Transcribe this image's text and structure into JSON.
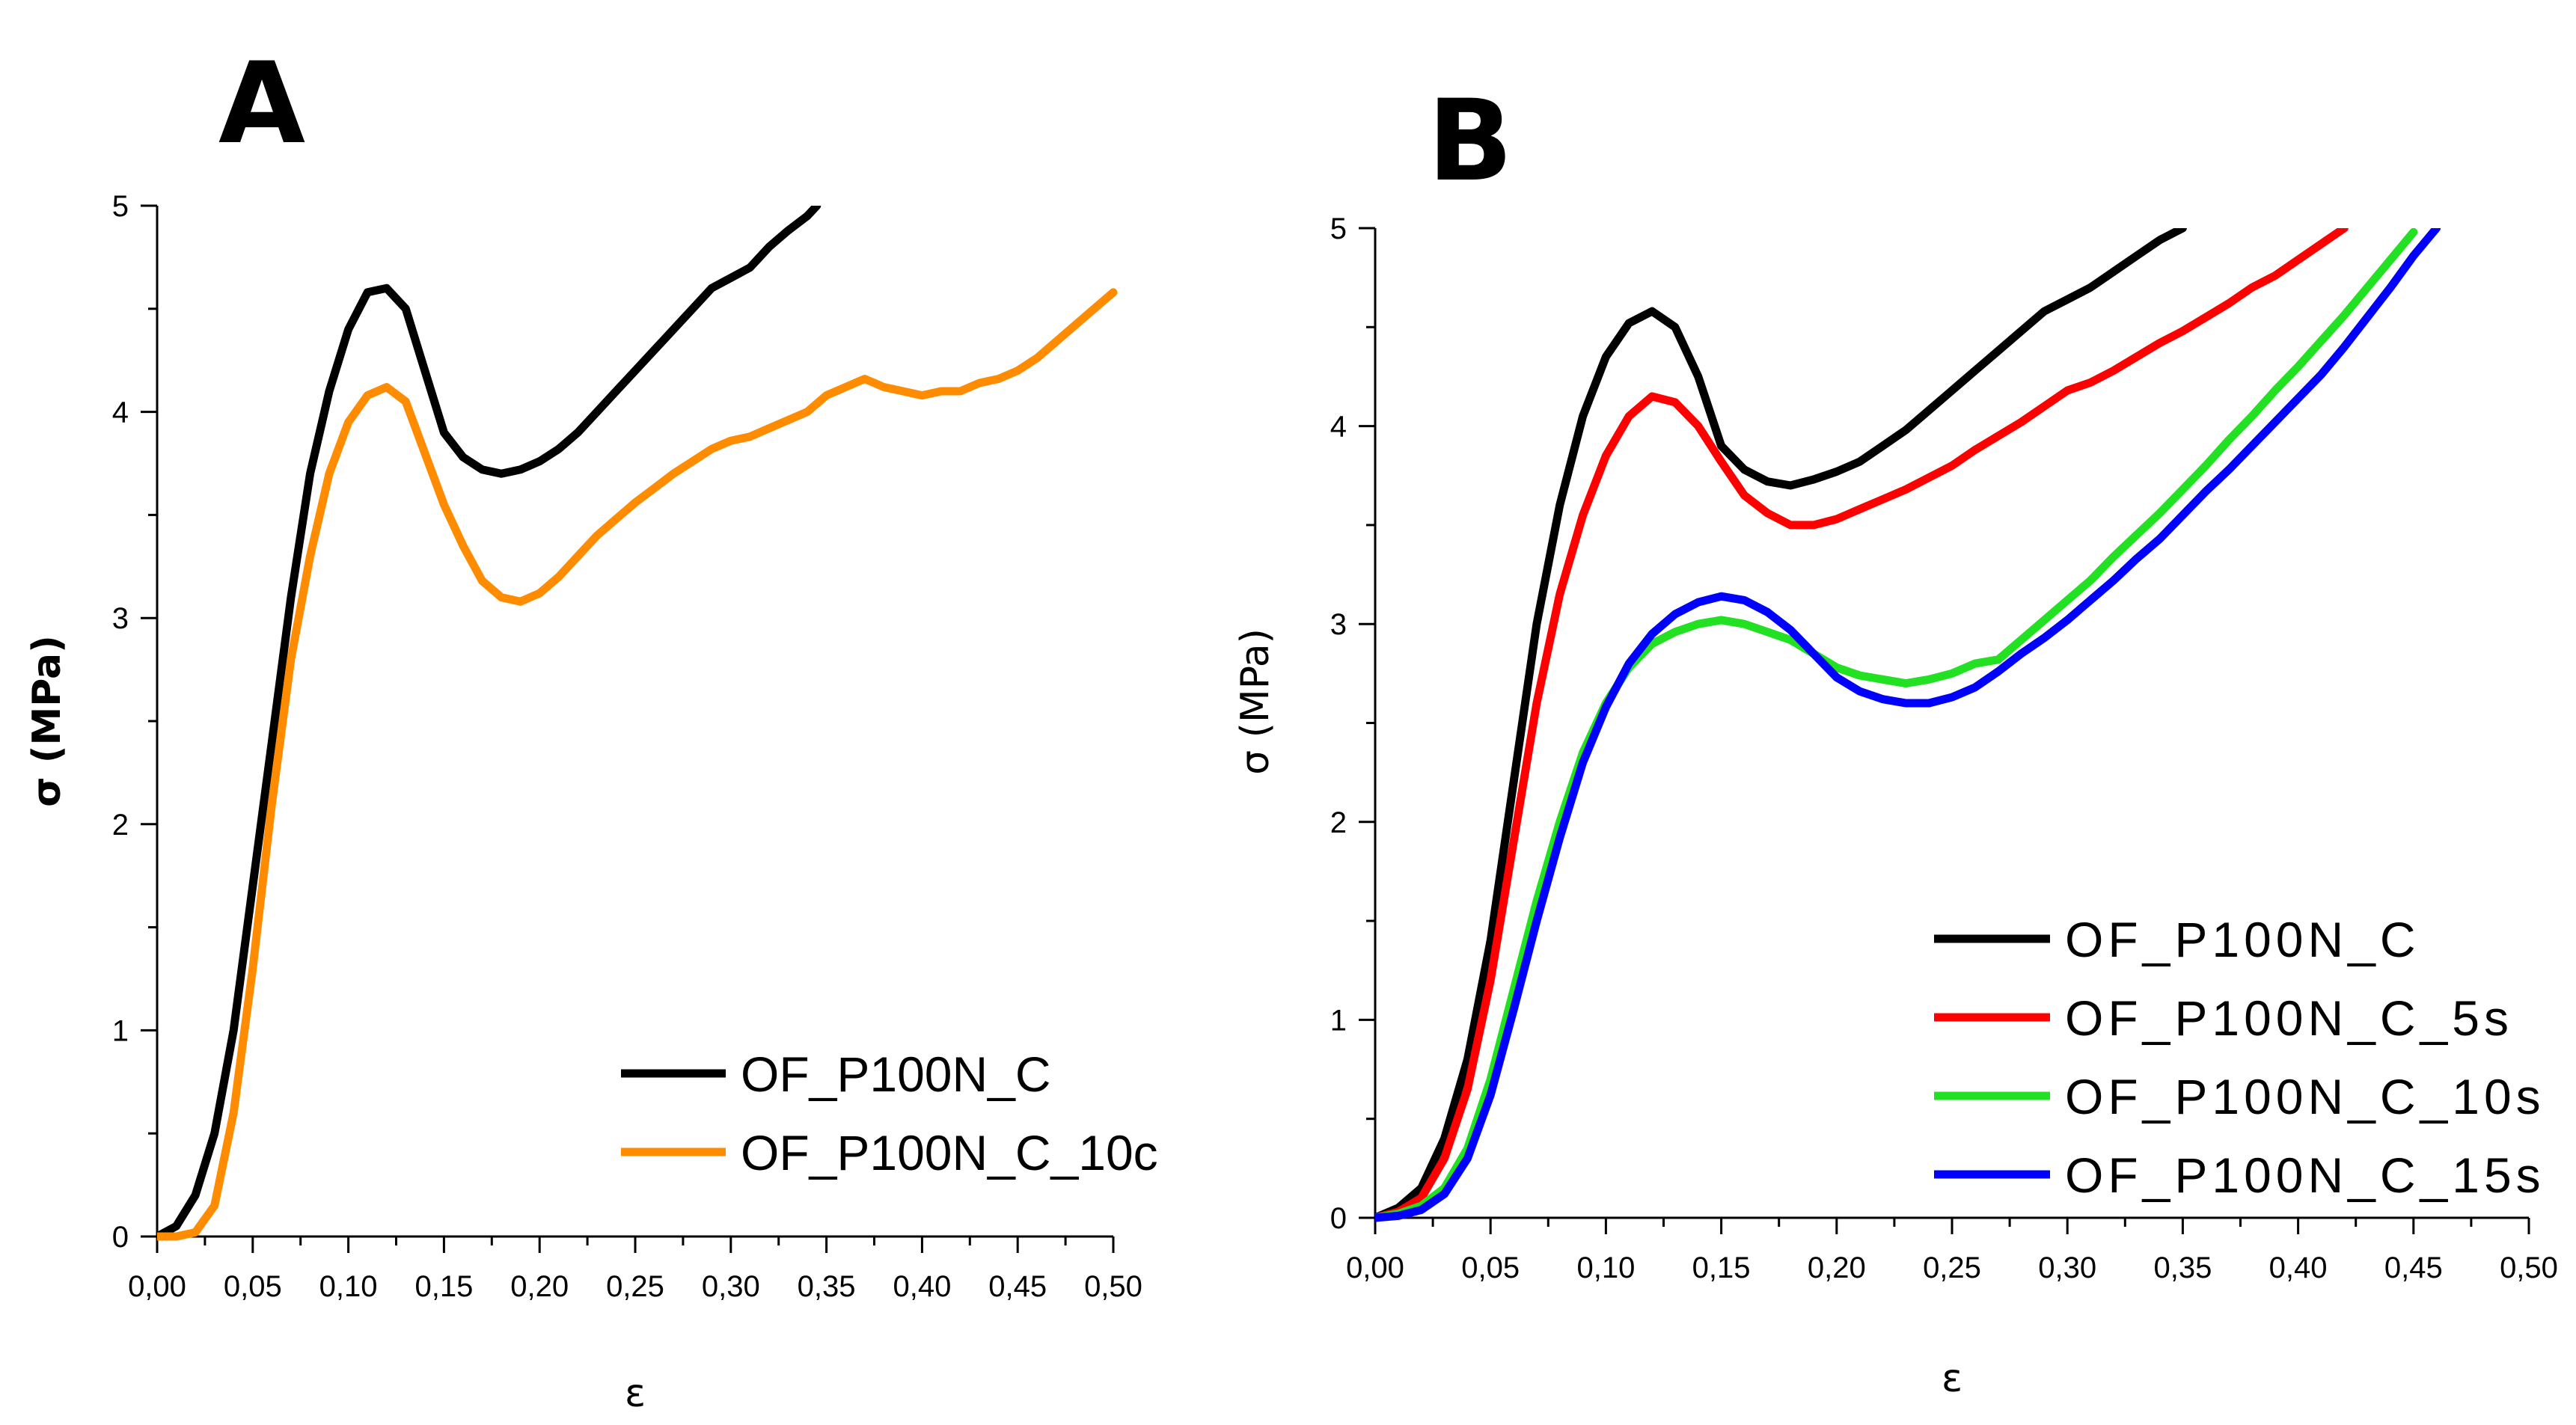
{
  "chart_data": [
    {
      "type": "line",
      "panel_label": "A",
      "xlabel": "ε",
      "ylabel": "σ (MPa)",
      "xlim": [
        0,
        0.5
      ],
      "ylim": [
        0,
        5
      ],
      "x_ticks": [
        "0,00",
        "0,05",
        "0,10",
        "0,15",
        "0,20",
        "0,25",
        "0,30",
        "0,35",
        "0,40",
        "0,45",
        "0,50"
      ],
      "y_ticks": [
        "0",
        "1",
        "2",
        "3",
        "4",
        "5"
      ],
      "legend_position": "bottom-right",
      "series": [
        {
          "name": "OF_P100N_C",
          "color": "#000000",
          "x": [
            0.0,
            0.01,
            0.02,
            0.03,
            0.04,
            0.05,
            0.06,
            0.07,
            0.08,
            0.09,
            0.1,
            0.11,
            0.12,
            0.13,
            0.14,
            0.15,
            0.16,
            0.17,
            0.18,
            0.19,
            0.2,
            0.21,
            0.22,
            0.23,
            0.24,
            0.25,
            0.26,
            0.27,
            0.28,
            0.29,
            0.3,
            0.31,
            0.32,
            0.33,
            0.34,
            0.345
          ],
          "y": [
            0.0,
            0.05,
            0.2,
            0.5,
            1.0,
            1.7,
            2.4,
            3.1,
            3.7,
            4.1,
            4.4,
            4.58,
            4.6,
            4.5,
            4.2,
            3.9,
            3.78,
            3.72,
            3.7,
            3.72,
            3.76,
            3.82,
            3.9,
            4.0,
            4.1,
            4.2,
            4.3,
            4.4,
            4.5,
            4.6,
            4.65,
            4.7,
            4.8,
            4.88,
            4.95,
            5.0
          ]
        },
        {
          "name": "OF_P100N_C_10c",
          "color": "#ff8c00",
          "x": [
            0.0,
            0.01,
            0.02,
            0.03,
            0.04,
            0.05,
            0.06,
            0.07,
            0.08,
            0.09,
            0.1,
            0.11,
            0.12,
            0.13,
            0.14,
            0.15,
            0.16,
            0.17,
            0.18,
            0.19,
            0.2,
            0.21,
            0.22,
            0.23,
            0.24,
            0.25,
            0.26,
            0.27,
            0.28,
            0.29,
            0.3,
            0.31,
            0.32,
            0.33,
            0.34,
            0.35,
            0.36,
            0.37,
            0.38,
            0.39,
            0.4,
            0.41,
            0.42,
            0.43,
            0.44,
            0.45,
            0.46,
            0.47,
            0.48,
            0.49,
            0.5
          ],
          "y": [
            0.0,
            0.0,
            0.02,
            0.15,
            0.6,
            1.3,
            2.1,
            2.8,
            3.3,
            3.7,
            3.95,
            4.08,
            4.12,
            4.05,
            3.8,
            3.55,
            3.35,
            3.18,
            3.1,
            3.08,
            3.12,
            3.2,
            3.3,
            3.4,
            3.48,
            3.56,
            3.63,
            3.7,
            3.76,
            3.82,
            3.86,
            3.88,
            3.92,
            3.96,
            4.0,
            4.08,
            4.12,
            4.16,
            4.12,
            4.1,
            4.08,
            4.1,
            4.1,
            4.14,
            4.16,
            4.2,
            4.26,
            4.34,
            4.42,
            4.5,
            4.58
          ]
        }
      ]
    },
    {
      "type": "line",
      "panel_label": "B",
      "xlabel": "ε",
      "ylabel": "σ (MPa)",
      "xlim": [
        0,
        0.5
      ],
      "ylim": [
        0,
        5
      ],
      "x_ticks": [
        "0,00",
        "0,05",
        "0,10",
        "0,15",
        "0,20",
        "0,25",
        "0,30",
        "0,35",
        "0,40",
        "0,45",
        "0,50"
      ],
      "y_ticks": [
        "0",
        "1",
        "2",
        "3",
        "4",
        "5"
      ],
      "legend_position": "bottom-right",
      "series": [
        {
          "name": "OF_P100N_C",
          "color": "#000000",
          "x": [
            0.0,
            0.01,
            0.02,
            0.03,
            0.04,
            0.05,
            0.06,
            0.07,
            0.08,
            0.09,
            0.1,
            0.11,
            0.12,
            0.13,
            0.14,
            0.15,
            0.16,
            0.17,
            0.18,
            0.19,
            0.2,
            0.21,
            0.22,
            0.23,
            0.24,
            0.25,
            0.26,
            0.27,
            0.28,
            0.29,
            0.3,
            0.31,
            0.32,
            0.33,
            0.34,
            0.35
          ],
          "y": [
            0.0,
            0.05,
            0.15,
            0.4,
            0.8,
            1.4,
            2.2,
            3.0,
            3.6,
            4.05,
            4.35,
            4.52,
            4.58,
            4.5,
            4.25,
            3.9,
            3.78,
            3.72,
            3.7,
            3.73,
            3.77,
            3.82,
            3.9,
            3.98,
            4.08,
            4.18,
            4.28,
            4.38,
            4.48,
            4.58,
            4.64,
            4.7,
            4.78,
            4.86,
            4.94,
            5.0
          ]
        },
        {
          "name": "OF_P100N_C_5s",
          "color": "#ff0000",
          "x": [
            0.0,
            0.01,
            0.02,
            0.03,
            0.04,
            0.05,
            0.06,
            0.07,
            0.08,
            0.09,
            0.1,
            0.11,
            0.12,
            0.13,
            0.14,
            0.15,
            0.16,
            0.17,
            0.18,
            0.19,
            0.2,
            0.21,
            0.22,
            0.23,
            0.24,
            0.25,
            0.26,
            0.27,
            0.28,
            0.29,
            0.3,
            0.31,
            0.32,
            0.33,
            0.34,
            0.35,
            0.36,
            0.37,
            0.38,
            0.39,
            0.4,
            0.41,
            0.42
          ],
          "y": [
            0.0,
            0.03,
            0.1,
            0.3,
            0.65,
            1.2,
            1.9,
            2.6,
            3.15,
            3.55,
            3.85,
            4.05,
            4.15,
            4.12,
            4.0,
            3.82,
            3.65,
            3.56,
            3.5,
            3.5,
            3.53,
            3.58,
            3.63,
            3.68,
            3.74,
            3.8,
            3.88,
            3.95,
            4.02,
            4.1,
            4.18,
            4.22,
            4.28,
            4.35,
            4.42,
            4.48,
            4.55,
            4.62,
            4.7,
            4.76,
            4.84,
            4.92,
            5.0
          ]
        },
        {
          "name": "OF_P100N_C_10s",
          "color": "#22e022",
          "x": [
            0.0,
            0.01,
            0.02,
            0.03,
            0.04,
            0.05,
            0.06,
            0.07,
            0.08,
            0.09,
            0.1,
            0.11,
            0.12,
            0.13,
            0.14,
            0.15,
            0.16,
            0.17,
            0.18,
            0.19,
            0.2,
            0.21,
            0.22,
            0.23,
            0.24,
            0.25,
            0.26,
            0.27,
            0.28,
            0.29,
            0.3,
            0.31,
            0.32,
            0.33,
            0.34,
            0.35,
            0.36,
            0.37,
            0.38,
            0.39,
            0.4,
            0.41,
            0.42,
            0.43,
            0.44,
            0.45
          ],
          "y": [
            0.0,
            0.02,
            0.06,
            0.15,
            0.35,
            0.7,
            1.15,
            1.6,
            2.0,
            2.35,
            2.6,
            2.78,
            2.9,
            2.96,
            3.0,
            3.02,
            3.0,
            2.96,
            2.92,
            2.85,
            2.78,
            2.74,
            2.72,
            2.7,
            2.72,
            2.75,
            2.8,
            2.82,
            2.92,
            3.02,
            3.12,
            3.22,
            3.34,
            3.45,
            3.56,
            3.68,
            3.8,
            3.93,
            4.05,
            4.18,
            4.3,
            4.43,
            4.56,
            4.7,
            4.84,
            4.98
          ]
        },
        {
          "name": "OF_P100N_C_15s",
          "color": "#0000ff",
          "x": [
            0.0,
            0.01,
            0.02,
            0.03,
            0.04,
            0.05,
            0.06,
            0.07,
            0.08,
            0.09,
            0.1,
            0.11,
            0.12,
            0.13,
            0.14,
            0.15,
            0.16,
            0.17,
            0.18,
            0.19,
            0.2,
            0.21,
            0.22,
            0.23,
            0.24,
            0.25,
            0.26,
            0.27,
            0.28,
            0.29,
            0.3,
            0.31,
            0.32,
            0.33,
            0.34,
            0.35,
            0.36,
            0.37,
            0.38,
            0.39,
            0.4,
            0.41,
            0.42,
            0.43,
            0.44,
            0.45,
            0.46
          ],
          "y": [
            0.0,
            0.01,
            0.04,
            0.12,
            0.3,
            0.62,
            1.05,
            1.5,
            1.92,
            2.3,
            2.58,
            2.8,
            2.95,
            3.05,
            3.11,
            3.14,
            3.12,
            3.06,
            2.97,
            2.85,
            2.73,
            2.66,
            2.62,
            2.6,
            2.6,
            2.63,
            2.68,
            2.76,
            2.85,
            2.93,
            3.02,
            3.12,
            3.22,
            3.33,
            3.43,
            3.55,
            3.67,
            3.78,
            3.9,
            4.02,
            4.14,
            4.26,
            4.4,
            4.55,
            4.7,
            4.86,
            5.0
          ]
        }
      ]
    }
  ]
}
